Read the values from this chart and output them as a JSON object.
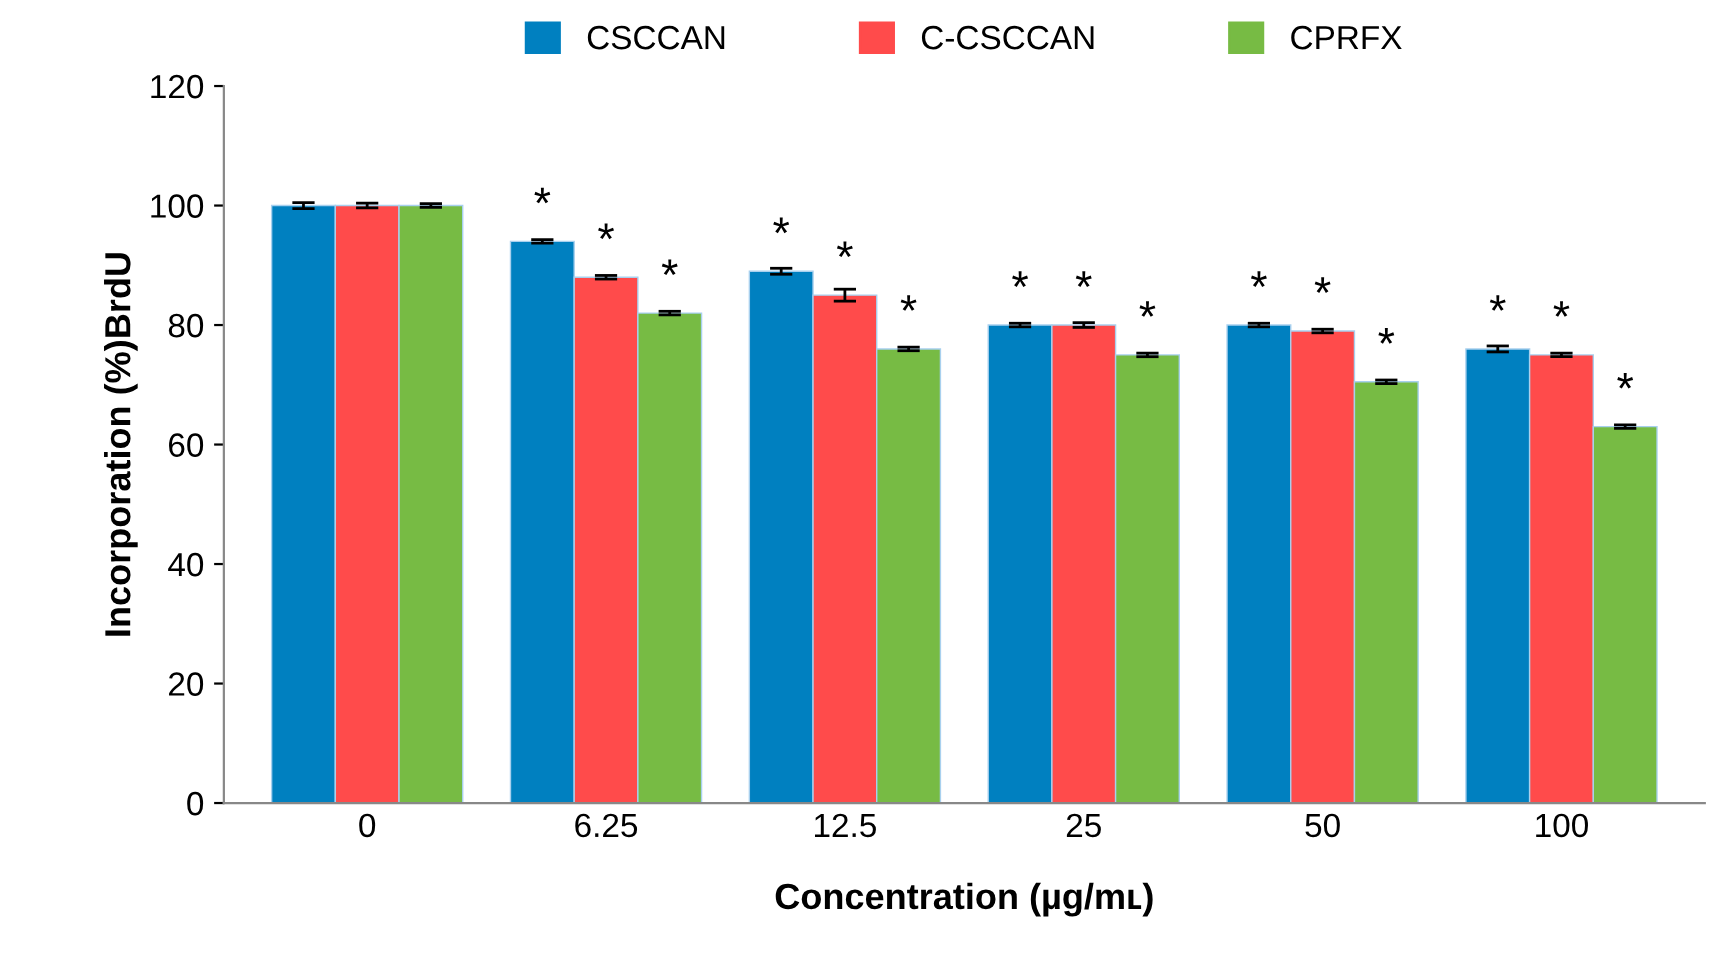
{
  "chart_data": {
    "type": "bar",
    "xlabel": "Concentration (µg/mʟ)",
    "ylabel": "Incorporation (%)BrdU",
    "categories": [
      "0",
      "6.25",
      "12.5",
      "25",
      "50",
      "100"
    ],
    "series": [
      {
        "name": "CSCCAN",
        "color": "#0080c0",
        "values": [
          100,
          94,
          89,
          80,
          80,
          76
        ],
        "errors": [
          0.5,
          0.3,
          0.5,
          0.3,
          0.3,
          0.5
        ],
        "value_labels": [
          null,
          "*",
          "*",
          "*",
          "*",
          "*"
        ]
      },
      {
        "name": "C-CSCCAN",
        "color": "#ff4b4b",
        "values": [
          100,
          88,
          85,
          80,
          79,
          75
        ],
        "errors": [
          0.4,
          0.3,
          1,
          0.4,
          0.3,
          0.3
        ],
        "value_labels": [
          null,
          "*",
          "*",
          "*",
          "*",
          "*"
        ]
      },
      {
        "name": "CPRFX",
        "color": "#77bb44",
        "values": [
          100,
          82,
          76,
          75,
          70.5,
          63
        ],
        "errors": [
          0.3,
          0.3,
          0.3,
          0.3,
          0.3,
          0.3
        ],
        "value_labels": [
          null,
          "*",
          "*",
          "*",
          "*",
          "*"
        ]
      }
    ],
    "ylim": [
      0,
      120
    ],
    "yticks": [
      0,
      20,
      40,
      60,
      80,
      100,
      120
    ],
    "legend": "top",
    "grid": false
  }
}
